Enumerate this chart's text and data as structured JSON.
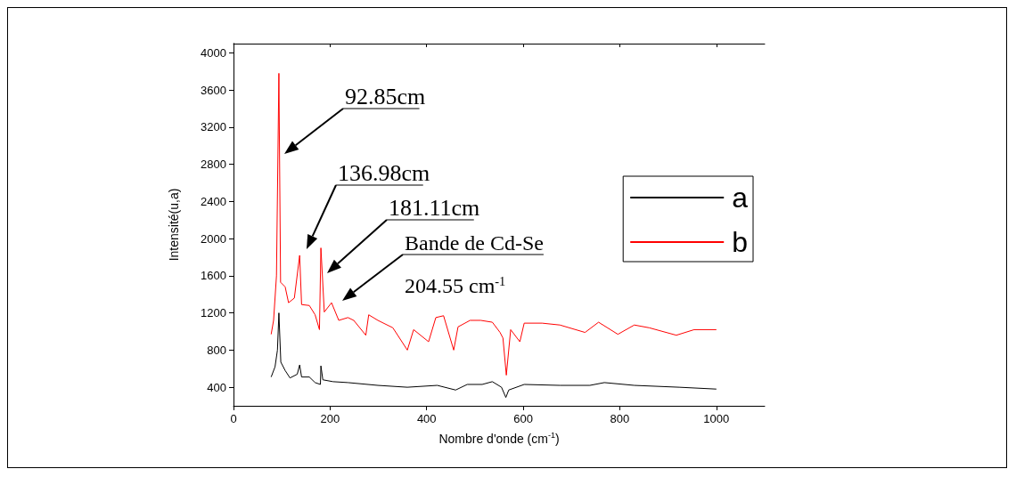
{
  "chart_data": {
    "type": "line",
    "xlabel": "Nombre d'onde (cm$^{-1}$)",
    "ylabel": "Intensité(u,a)",
    "xlim": [
      0,
      1100
    ],
    "xticks": [
      0,
      200,
      400,
      600,
      800,
      1000
    ],
    "ylim": [
      200,
      4100
    ],
    "yticks": [
      400,
      800,
      1200,
      1600,
      2000,
      2400,
      2800,
      3200,
      3600,
      4000
    ],
    "legend": "right",
    "series": [
      {
        "name": "a",
        "color": "#000000",
        "x": [
          78,
          86,
          91,
          94,
          98,
          107,
          117,
          132,
          137,
          141,
          157,
          169,
          180,
          181,
          185,
          206,
          237,
          299,
          360,
          422,
          460,
          484,
          515,
          536,
          555,
          564,
          570,
          602,
          676,
          738,
          768,
          830,
          923,
          1000
        ],
        "values": [
          510,
          620,
          800,
          1200,
          670,
          580,
          500,
          540,
          640,
          510,
          510,
          450,
          430,
          630,
          480,
          460,
          450,
          420,
          400,
          420,
          370,
          430,
          430,
          460,
          400,
          290,
          370,
          430,
          420,
          420,
          450,
          420,
          400,
          380
        ]
      },
      {
        "name": "b",
        "color": "#ff0000",
        "x": [
          78,
          83,
          89,
          94,
          97.5,
          107,
          114,
          126,
          137,
          141,
          157,
          169,
          178,
          181,
          188,
          203,
          218,
          237,
          249,
          274,
          280,
          299,
          330,
          360,
          373,
          404,
          419,
          435,
          456,
          465,
          490,
          512,
          536,
          552,
          558,
          565,
          574,
          593,
          602,
          639,
          676,
          728,
          756,
          796,
          830,
          861,
          917,
          954,
          1000
        ],
        "values": [
          970,
          1120,
          1600,
          3780,
          1530,
          1480,
          1310,
          1360,
          1820,
          1290,
          1280,
          1180,
          1020,
          1900,
          1210,
          1310,
          1120,
          1150,
          1120,
          960,
          1180,
          1120,
          1040,
          800,
          1020,
          890,
          1150,
          1170,
          800,
          1050,
          1120,
          1120,
          1100,
          990,
          930,
          530,
          1020,
          890,
          1090,
          1090,
          1070,
          990,
          1100,
          970,
          1070,
          1040,
          960,
          1020,
          1020
        ]
      }
    ],
    "annotations": [
      "92.85cm",
      "136.98cm",
      "181.11cm",
      "Bande de Cd-Se\n204.55 cm$^{-1}$"
    ]
  }
}
